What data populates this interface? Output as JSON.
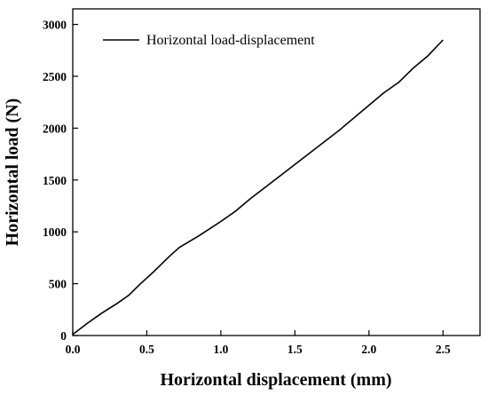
{
  "chart_data": {
    "type": "line",
    "xlabel": "Horizontal displacement (mm)",
    "ylabel": "Horizontal load (N)",
    "xlim": [
      0.0,
      2.75
    ],
    "ylim": [
      0,
      3150
    ],
    "x_ticks": [
      0.0,
      0.5,
      1.0,
      1.5,
      2.0,
      2.5
    ],
    "x_tick_labels": [
      "0.0",
      "0.5",
      "1.0",
      "1.5",
      "2.0",
      "2.5"
    ],
    "y_ticks": [
      0,
      500,
      1000,
      1500,
      2000,
      2500,
      3000
    ],
    "y_tick_labels": [
      "0",
      "500",
      "1000",
      "1500",
      "2000",
      "2500",
      "3000"
    ],
    "grid": false,
    "legend_position": "top-left",
    "colors": {
      "line": "#000000",
      "axes": "#000000",
      "background": "#ffffff"
    },
    "series": [
      {
        "name": "Horizontal load-displacement",
        "x": [
          0.0,
          0.1,
          0.2,
          0.3,
          0.38,
          0.45,
          0.55,
          0.65,
          0.72,
          0.85,
          1.0,
          1.1,
          1.2,
          1.4,
          1.6,
          1.8,
          2.0,
          2.1,
          2.2,
          2.3,
          2.4,
          2.5
        ],
        "y": [
          10,
          120,
          220,
          310,
          390,
          490,
          620,
          760,
          850,
          960,
          1100,
          1200,
          1320,
          1540,
          1760,
          1980,
          2220,
          2340,
          2440,
          2580,
          2700,
          2850
        ]
      }
    ]
  }
}
